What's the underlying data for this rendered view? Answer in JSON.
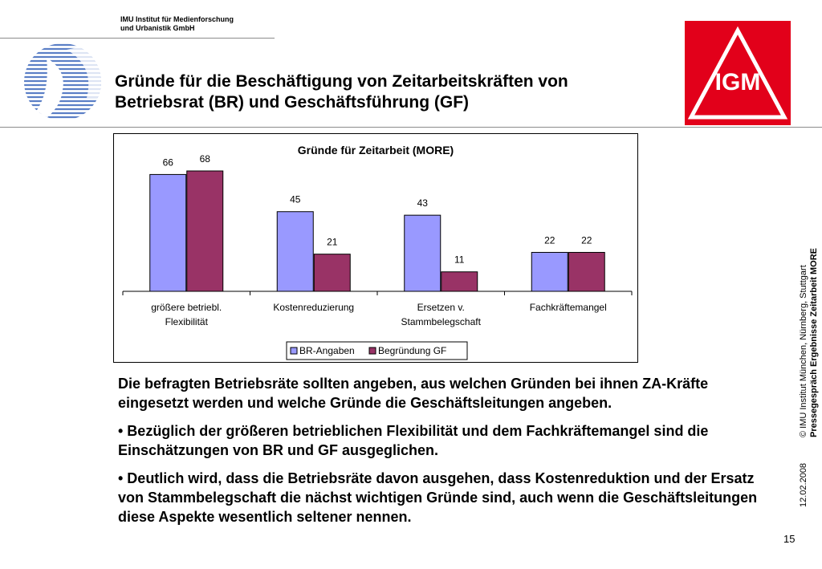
{
  "header": {
    "institute_line1": "IMU Institut für Medienforschung",
    "institute_line2": "und Urbanistik GmbH",
    "title_line1": "Gründe für die Beschäftigung von Zeitarbeitskräften von",
    "title_line2": "Betriebsrat (BR) und Geschäftsführung (GF)"
  },
  "logos": {
    "left": "imu-logo",
    "right_text": "IGM",
    "right_color": "#e2001a"
  },
  "chart_data": {
    "type": "bar",
    "title": "Gründe für Zeitarbeit (MORE)",
    "categories": [
      [
        "größere betriebl.",
        "Flexibilität"
      ],
      [
        "Kostenreduzierung"
      ],
      [
        "Ersetzen v.",
        "Stammbelegschaft"
      ],
      [
        "Fachkräftemangel"
      ]
    ],
    "series": [
      {
        "name": "BR-Angaben",
        "values": [
          66,
          45,
          43,
          22
        ],
        "color": "#9999ff"
      },
      {
        "name": "Begründung GF",
        "values": [
          68,
          21,
          11,
          22
        ],
        "color": "#993366"
      }
    ],
    "ylim": [
      0,
      80
    ],
    "grid": false,
    "legend": "bottom"
  },
  "body": {
    "p1": "Die befragten Betriebsräte sollten angeben, aus welchen Gründen bei ihnen ZA-Kräfte eingesetzt werden und welche Gründe die Geschäftsleitungen angeben.",
    "p2": "• Bezüglich der größeren betrieblichen Flexibilität und dem Fachkräftemangel sind die Einschätzungen von BR und GF ausgeglichen.",
    "p3": "• Deutlich wird, dass die Betriebsräte davon ausgehen, dass Kostenreduktion und der Ersatz von Stammbelegschaft die nächst wichtigen Gründe sind, auch wenn die Geschäftsleitungen diese Aspekte wesentlich seltener nennen."
  },
  "side": {
    "copyright": "© IMU Institut München, Nürnberg, Stuttgart",
    "subtitle": "Pressegespräch Ergebnisse Zeitarbeit MORE",
    "date": "12.02.2008"
  },
  "page_number": "15"
}
